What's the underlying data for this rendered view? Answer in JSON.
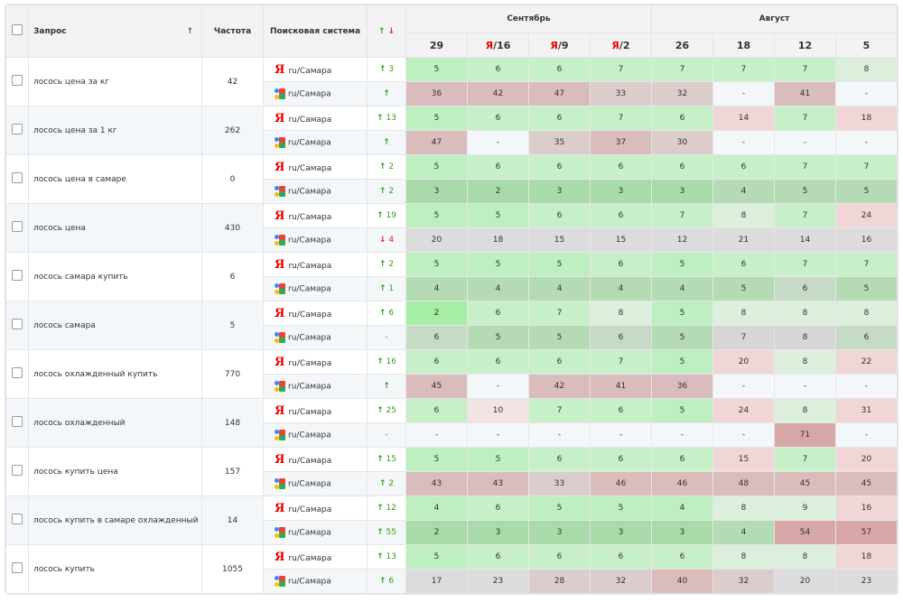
{
  "header": {
    "query": "Запрос",
    "sort_icon": "arrow-up-icon",
    "freq": "Частота",
    "engine": "Поисковая система",
    "delta_up": "↑",
    "delta_down": "↓",
    "months": [
      "Сентябрь",
      "Август"
    ],
    "dates": [
      {
        "y": "",
        "d": "29"
      },
      {
        "y": "Я",
        "d": "/16"
      },
      {
        "y": "Я",
        "d": "/9"
      },
      {
        "y": "Я",
        "d": "/2"
      },
      {
        "y": "",
        "d": "26"
      },
      {
        "y": "",
        "d": "18"
      },
      {
        "y": "",
        "d": "12"
      },
      {
        "y": "",
        "d": "5"
      }
    ]
  },
  "region": "ru/Самара",
  "yandex_logo": "Я",
  "rows": [
    {
      "query": "лосось цена за кг",
      "freq": "42",
      "y": {
        "dir": "up",
        "delta": "3",
        "vals": [
          "5",
          "6",
          "6",
          "7",
          "7",
          "7",
          "7",
          "8"
        ]
      },
      "g": {
        "dir": "up",
        "delta": "",
        "vals": [
          "36",
          "42",
          "47",
          "33",
          "32",
          "-",
          "41",
          "-"
        ]
      }
    },
    {
      "query": "лосось цена за 1 кг",
      "freq": "262",
      "y": {
        "dir": "up",
        "delta": "13",
        "vals": [
          "5",
          "6",
          "6",
          "7",
          "6",
          "14",
          "7",
          "18"
        ]
      },
      "g": {
        "dir": "up",
        "delta": "",
        "vals": [
          "47",
          "-",
          "35",
          "37",
          "30",
          "-",
          "-",
          "-"
        ]
      }
    },
    {
      "query": "лосось цена в самаре",
      "freq": "0",
      "y": {
        "dir": "up",
        "delta": "2",
        "vals": [
          "5",
          "6",
          "6",
          "6",
          "6",
          "6",
          "7",
          "7"
        ]
      },
      "g": {
        "dir": "up",
        "delta": "2",
        "vals": [
          "3",
          "2",
          "3",
          "3",
          "3",
          "4",
          "5",
          "5"
        ]
      }
    },
    {
      "query": "лосось цена",
      "freq": "430",
      "y": {
        "dir": "up",
        "delta": "19",
        "vals": [
          "5",
          "5",
          "6",
          "6",
          "7",
          "8",
          "7",
          "24"
        ]
      },
      "g": {
        "dir": "down",
        "delta": "4",
        "vals": [
          "20",
          "18",
          "15",
          "15",
          "12",
          "21",
          "14",
          "16"
        ]
      }
    },
    {
      "query": "лосось самара купить",
      "freq": "6",
      "y": {
        "dir": "up",
        "delta": "2",
        "vals": [
          "5",
          "5",
          "5",
          "6",
          "5",
          "6",
          "7",
          "7"
        ]
      },
      "g": {
        "dir": "up",
        "delta": "1",
        "vals": [
          "4",
          "4",
          "4",
          "4",
          "4",
          "5",
          "6",
          "5"
        ]
      }
    },
    {
      "query": "лосось самара",
      "freq": "5",
      "y": {
        "dir": "up",
        "delta": "6",
        "vals": [
          "2",
          "6",
          "7",
          "8",
          "5",
          "8",
          "8",
          "8"
        ]
      },
      "g": {
        "dir": "none",
        "delta": "-",
        "vals": [
          "6",
          "5",
          "5",
          "6",
          "5",
          "7",
          "8",
          "6"
        ]
      }
    },
    {
      "query": "лосось охлажденный купить",
      "freq": "770",
      "y": {
        "dir": "up",
        "delta": "16",
        "vals": [
          "6",
          "6",
          "6",
          "7",
          "5",
          "20",
          "8",
          "22"
        ]
      },
      "g": {
        "dir": "up",
        "delta": "",
        "vals": [
          "45",
          "-",
          "42",
          "41",
          "36",
          "-",
          "-",
          "-"
        ]
      }
    },
    {
      "query": "лосось охлажденный",
      "freq": "148",
      "y": {
        "dir": "up",
        "delta": "25",
        "vals": [
          "6",
          "10",
          "7",
          "6",
          "5",
          "24",
          "8",
          "31"
        ]
      },
      "g": {
        "dir": "none",
        "delta": "-",
        "vals": [
          "-",
          "-",
          "-",
          "-",
          "-",
          "-",
          "71",
          "-"
        ]
      }
    },
    {
      "query": "лосось купить цена",
      "freq": "157",
      "y": {
        "dir": "up",
        "delta": "15",
        "vals": [
          "5",
          "5",
          "6",
          "6",
          "6",
          "15",
          "7",
          "20"
        ]
      },
      "g": {
        "dir": "up",
        "delta": "2",
        "vals": [
          "43",
          "43",
          "33",
          "46",
          "46",
          "48",
          "45",
          "45"
        ]
      }
    },
    {
      "query": "лосось купить в самаре охлажденный",
      "freq": "14",
      "y": {
        "dir": "up",
        "delta": "12",
        "vals": [
          "4",
          "6",
          "5",
          "5",
          "4",
          "8",
          "9",
          "16"
        ]
      },
      "g": {
        "dir": "up",
        "delta": "55",
        "vals": [
          "2",
          "3",
          "3",
          "3",
          "3",
          "4",
          "54",
          "57"
        ]
      }
    },
    {
      "query": "лосось купить",
      "freq": "1055",
      "y": {
        "dir": "up",
        "delta": "13",
        "vals": [
          "5",
          "6",
          "6",
          "6",
          "6",
          "8",
          "8",
          "18"
        ]
      },
      "g": {
        "dir": "up",
        "delta": "6",
        "vals": [
          "17",
          "23",
          "28",
          "32",
          "40",
          "32",
          "20",
          "23"
        ]
      }
    }
  ]
}
